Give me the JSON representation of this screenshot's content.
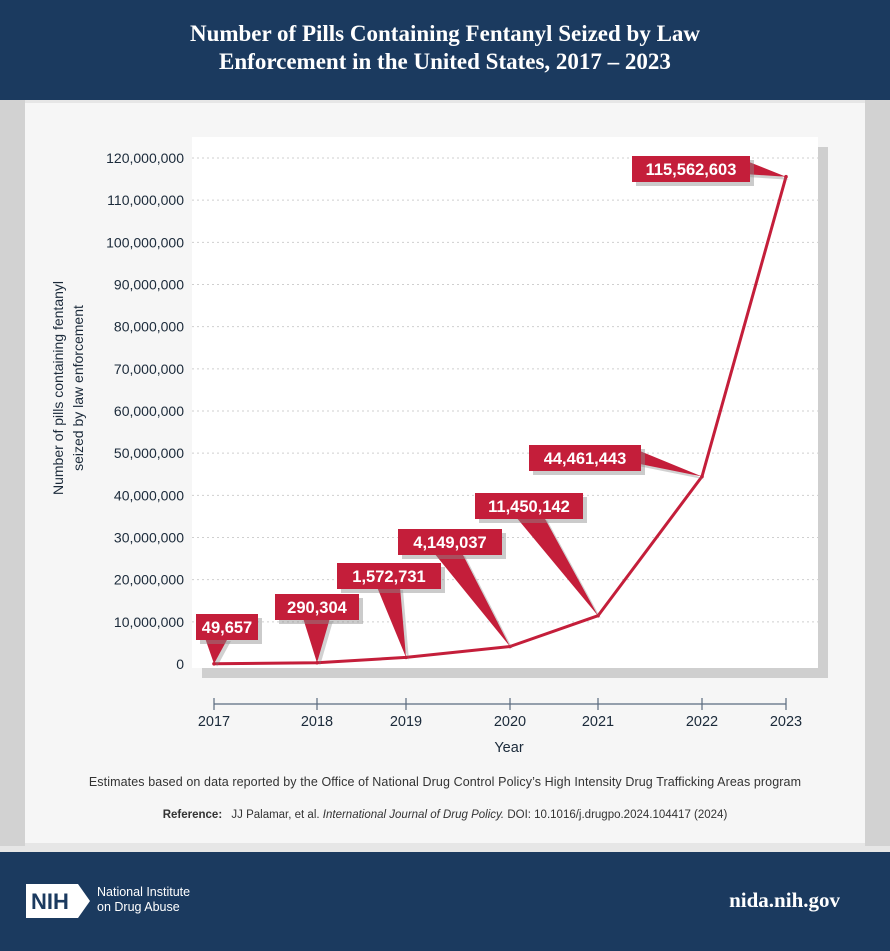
{
  "header": {
    "title": "Number of Pills Containing Fentanyl Seized by Law\nEnforcement in the United States, 2017 – 2023"
  },
  "chart_data": {
    "type": "line",
    "title": "Number of Pills Containing Fentanyl Seized by Law Enforcement in the United States, 2017 – 2023",
    "xlabel": "Year",
    "ylabel": "Number of pills containing fentanyl seized by law enforcement",
    "ylabel_lines": [
      "Number of pills containing fentanyl",
      "seized by law enforcement"
    ],
    "x": [
      "2017",
      "2018",
      "2019",
      "2020",
      "2021",
      "2022",
      "2023"
    ],
    "values": [
      49657,
      290304,
      1572731,
      4149037,
      11450142,
      44461443,
      115562603
    ],
    "data_labels": [
      "49,657",
      "290,304",
      "1,572,731",
      "4,149,037",
      "11,450,142",
      "44,461,443",
      "115,562,603"
    ],
    "ylim": [
      0,
      120000000
    ],
    "yticks": [
      0,
      10000000,
      20000000,
      30000000,
      40000000,
      50000000,
      60000000,
      70000000,
      80000000,
      90000000,
      100000000,
      110000000,
      120000000
    ],
    "ytick_labels": [
      "0",
      "10,000,000",
      "20,000,000",
      "30,000,000",
      "40,000,000",
      "50,000,000",
      "60,000,000",
      "70,000,000",
      "80,000,000",
      "90,000,000",
      "100,000,000",
      "110,000,000",
      "120,000,000"
    ],
    "grid": true,
    "line_color": "#c41e3a"
  },
  "footnote": "Estimates based on data reported by the Office of National Drug Control Policy’s High Intensity Drug Trafficking Areas program",
  "reference": {
    "label": "Reference:",
    "authors": "JJ Palamar, et al.",
    "journal": "International Journal of Drug Policy.",
    "doi": "DOI: 10.1016/j.drugpo.2024.104417 (2024)"
  },
  "footer": {
    "logo_text": "NIH",
    "org_name": "National Institute\non Drug Abuse",
    "site": "nida.nih.gov"
  },
  "colors": {
    "navy": "#1b3a5f",
    "accent_red": "#c41e3a"
  }
}
